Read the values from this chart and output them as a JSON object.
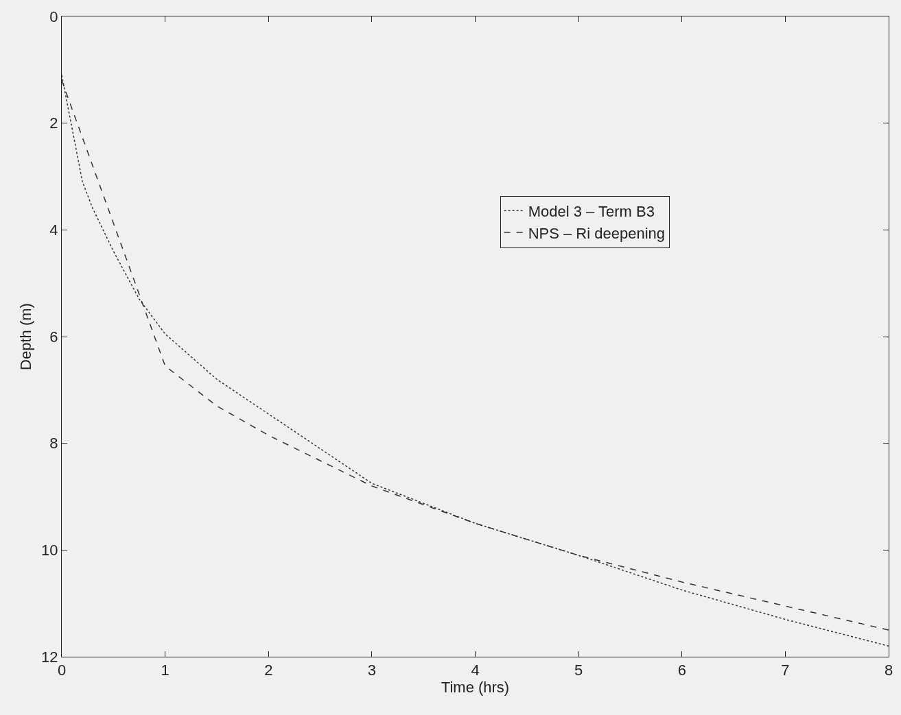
{
  "chart_data": {
    "type": "line",
    "xlabel": "Time (hrs)",
    "ylabel": "Depth (m)",
    "xlim": [
      0,
      8
    ],
    "xticks": [
      0,
      1,
      2,
      3,
      4,
      5,
      6,
      7,
      8
    ],
    "ylim": [
      12,
      0
    ],
    "yticks": [
      0,
      2,
      4,
      6,
      8,
      10,
      12
    ],
    "grid": false,
    "legend": "right",
    "series": [
      {
        "name": "Model 3 – Term B3",
        "color": "#333333",
        "line_style": "dotted",
        "x": [
          0,
          0.1,
          0.2,
          0.3,
          0.5,
          0.75,
          1,
          1.5,
          2,
          3,
          4,
          5,
          6,
          7,
          8
        ],
        "values": [
          1.1,
          2.1,
          3.1,
          3.6,
          4.4,
          5.3,
          5.95,
          6.8,
          7.45,
          8.75,
          9.5,
          10.1,
          10.75,
          11.3,
          11.8
        ]
      },
      {
        "name": "NPS – Ri deepening",
        "color": "#333333",
        "line_style": "dashed",
        "x": [
          0,
          1,
          1.5,
          2,
          3,
          4,
          5,
          6,
          7,
          8
        ],
        "values": [
          1.2,
          6.55,
          7.3,
          7.85,
          8.8,
          9.5,
          10.1,
          10.6,
          11.05,
          11.5
        ]
      }
    ]
  }
}
